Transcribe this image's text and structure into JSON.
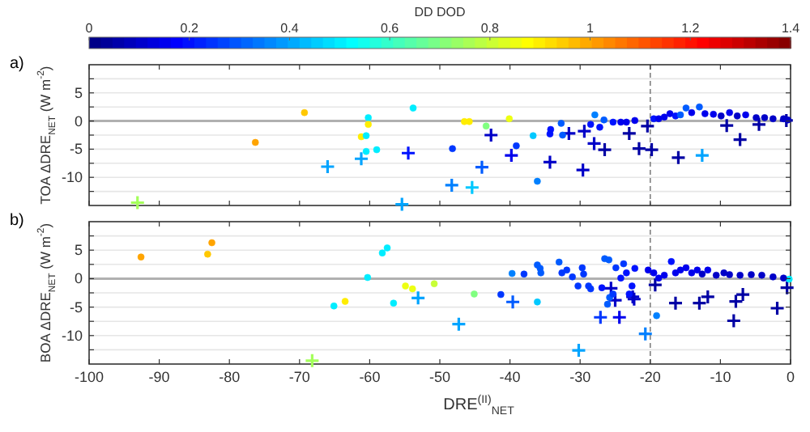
{
  "chart_data": [
    {
      "type": "scatter",
      "title": "a)",
      "ylabel": "TOA ΔDRE$_{NET}$ (W m$^{-2}$)",
      "clabel": "DD DOD",
      "clim": [
        0,
        1.4
      ],
      "cticks": [
        0,
        0.2,
        0.4,
        0.6,
        0.8,
        1,
        1.2,
        1.4
      ],
      "xlim": [
        -100,
        0
      ],
      "xticks": [
        -100,
        -90,
        -80,
        -70,
        -60,
        -50,
        -40,
        -30,
        -20,
        -10,
        0
      ],
      "tick_labels": "y",
      "ylim": [
        -15,
        10
      ],
      "yticks": [
        {
          "value": -12.5,
          "label": null
        },
        -10,
        {
          "value": -7.5,
          "label": null
        },
        -5,
        {
          "value": -2.5,
          "label": null
        },
        0,
        {
          "value": 2.5,
          "label": null
        },
        5,
        {
          "value": 7.5,
          "label": null
        }
      ],
      "grid": "y",
      "ref_lines": [
        {
          "axis": "x",
          "value": -20,
          "label": null,
          "color": "#808080",
          "line_style": "dashed"
        },
        {
          "axis": "y",
          "value": 0,
          "label": null,
          "color": "#b0b0b0",
          "line_style": "solid"
        }
      ],
      "series": [
        {
          "marker": "circle",
          "x": [
            -76.3,
            -69.3,
            -60.2,
            -60.2,
            -61.2,
            -60.5,
            -60.5,
            -59,
            -53.8,
            -46.5,
            -45.8,
            -43.4,
            -40.1,
            -48.2,
            -39.1,
            -36.7,
            -36.1,
            -34.2,
            -34.3,
            -32.7,
            -32.5,
            -28.5,
            -27.9,
            -26.6,
            -27.2,
            -25.3,
            -24.2,
            -23.4,
            -22.2,
            -19.5,
            -18.8,
            -18,
            -17.2,
            -16.4,
            -15.7,
            -14.9,
            -14.1,
            -13,
            -12.2,
            -11,
            -9.9,
            -8.7,
            -7.6,
            -6.4,
            -4.9,
            -3.7,
            -2.5,
            -1,
            -0.4
          ],
          "values": [
            -3.8,
            1.5,
            0.6,
            -0.6,
            -2.8,
            -2.6,
            -5.4,
            -5.1,
            2.3,
            -0.1,
            -0.1,
            -0.9,
            0.4,
            -4.9,
            -4.4,
            -2.6,
            -10.7,
            -1.5,
            -2.3,
            -0.4,
            -2.5,
            -0.6,
            1.1,
            0.2,
            -1.1,
            -0.2,
            -0.2,
            -0.2,
            0.1,
            0.4,
            0.4,
            0.7,
            1.3,
            0.9,
            1.1,
            2.3,
            1.5,
            2.5,
            1.3,
            1.2,
            0.9,
            1.5,
            0.9,
            1.1,
            0.6,
            0.6,
            0.4,
            0.4,
            0.2
          ],
          "cvalues": [
            1.0,
            0.95,
            0.5,
            0.9,
            0.9,
            0.5,
            0.5,
            0.5,
            0.5,
            0.9,
            0.9,
            0.7,
            0.85,
            0.25,
            0.25,
            0.45,
            0.35,
            0.2,
            0.2,
            0.3,
            0.3,
            0.2,
            0.35,
            0.3,
            0.2,
            0.2,
            0.15,
            0.15,
            0.15,
            0.2,
            0.15,
            0.15,
            0.15,
            0.2,
            0.3,
            0.3,
            0.15,
            0.3,
            0.15,
            0.15,
            0.1,
            0.15,
            0.1,
            0.15,
            0.1,
            0.1,
            0.1,
            0.1,
            0.1
          ],
          "colors": [
            "#ffa400",
            "#ffc800",
            "#00edff",
            "#ffed00",
            "#ffed00",
            "#00edff",
            "#00edff",
            "#00edff",
            "#00edff",
            "#ffed00",
            "#ffed00",
            "#80ff80",
            "#edff12",
            "#0037ff",
            "#0037ff",
            "#00c8ff",
            "#0080ff",
            "#0012ff",
            "#0012ff",
            "#005bff",
            "#005bff",
            "#0012ff",
            "#0080ff",
            "#005bff",
            "#0012ff",
            "#0012ff",
            "#0000ed",
            "#0000ed",
            "#0000ed",
            "#0012ff",
            "#0000ed",
            "#0000ed",
            "#0000ed",
            "#0012ff",
            "#005bff",
            "#005bff",
            "#0000ed",
            "#005bff",
            "#0000ed",
            "#0000ed",
            "#0000c8",
            "#0000ed",
            "#0000c8",
            "#0000ed",
            "#0000c8",
            "#0000c8",
            "#0000c8",
            "#0000c8",
            "#0000c8"
          ]
        },
        {
          "marker": "cross",
          "x": [
            -93.1,
            -66,
            -61.2,
            -54.5,
            -55.4,
            -42.7,
            -48.3,
            -45.4,
            -44,
            -39.8,
            -34.3,
            -31.6,
            -29.6,
            -29.4,
            -28,
            -26.5,
            -23,
            -21.6,
            -20.4,
            -19.8,
            -16,
            -12.6,
            -9.1,
            -7.2,
            -4.5,
            -0.6
          ],
          "values": [
            -14.5,
            -8.1,
            -6.7,
            -5.7,
            -14.8,
            -2.5,
            -11.4,
            -11.8,
            -8.2,
            -6.1,
            -7.3,
            -2.2,
            -8.7,
            -1.8,
            -4,
            -5.1,
            -2.2,
            -4.9,
            -0.9,
            -5.1,
            -6.5,
            -6.1,
            -0.8,
            -3.3,
            -0.6,
            0.1
          ],
          "cvalues": [
            0.75,
            0.4,
            0.4,
            0.2,
            0.4,
            0.1,
            0.35,
            0.45,
            0.3,
            0.15,
            0.1,
            0.1,
            0.1,
            0.1,
            0.1,
            0.05,
            0.05,
            0.05,
            0.05,
            0.05,
            0.05,
            0.4,
            0.05,
            0.05,
            0.05,
            0.05
          ],
          "colors": [
            "#a4ff5b",
            "#00a4ff",
            "#00a4ff",
            "#0012ff",
            "#00a4ff",
            "#0000c8",
            "#0080ff",
            "#00c8ff",
            "#005bff",
            "#0000ed",
            "#0000c8",
            "#0000c8",
            "#0000c8",
            "#0000c8",
            "#0000c8",
            "#0000a4",
            "#0000a4",
            "#0000a4",
            "#0000a4",
            "#0000a4",
            "#0000a4",
            "#00a4ff",
            "#0000a4",
            "#0000a4",
            "#0000a4",
            "#0000a4"
          ]
        }
      ]
    },
    {
      "type": "scatter",
      "title": "b)",
      "ylabel": "BOA ΔDRE$_{NET}$ (W m$^{-2}$)",
      "xlabel": "DRE$^{(II)}$$_{NET}$",
      "xlim": [
        -100,
        0
      ],
      "xticks": [
        -100,
        -90,
        -80,
        -70,
        -60,
        -50,
        -40,
        -30,
        -20,
        -10,
        0
      ],
      "ylim": [
        -15,
        10
      ],
      "yticks": [
        {
          "value": -12.5,
          "label": null
        },
        -10,
        {
          "value": -7.5,
          "label": null
        },
        -5,
        {
          "value": -2.5,
          "label": null
        },
        0,
        {
          "value": 2.5,
          "label": null
        },
        5,
        {
          "value": 7.5,
          "label": null
        }
      ],
      "grid": "y",
      "ref_lines": [
        {
          "axis": "x",
          "value": -20,
          "label": null,
          "color": "#808080",
          "line_style": "dashed"
        },
        {
          "axis": "y",
          "value": 0,
          "label": null,
          "color": "#b0b0b0",
          "line_style": "solid"
        }
      ],
      "series": [
        {
          "marker": "circle",
          "x": [
            -92.6,
            -83.1,
            -82.5,
            -65.1,
            -63.5,
            -60.3,
            -58.2,
            -57.5,
            -56.6,
            -54.9,
            -53.9,
            -50.8,
            -45.1,
            -41.3,
            -39.7,
            -38,
            -36.1,
            -36.1,
            -35.7,
            -35.6,
            -33,
            -32.6,
            -31.9,
            -31.1,
            -29.7,
            -29.5,
            -30.3,
            -28.8,
            -28.5,
            -26.1,
            -25.8,
            -25.3,
            -26.9,
            -26.5,
            -25.9,
            -24.9,
            -24.2,
            -23.8,
            -23.4,
            -22.6,
            -22.2,
            -23,
            -19.1,
            -0.2,
            -20.3,
            -19.5,
            -18.8,
            -18,
            -17,
            -16.4,
            -15.7,
            -14.9,
            -14.1,
            -13.3,
            -12.6,
            -11.8,
            -10.6,
            -9.5,
            -8.7,
            -7.2,
            -5.6,
            -4.1,
            -2.5,
            -1
          ],
          "values": [
            3.8,
            4.3,
            6.3,
            -4.8,
            -4,
            0.2,
            4.5,
            5.4,
            -4.3,
            -1.3,
            -1.8,
            -0.9,
            -2.7,
            -2.8,
            0.9,
            0.8,
            -4.1,
            2.4,
            1.8,
            1,
            2.9,
            1,
            1.5,
            0.3,
            1.9,
            0.8,
            -1.3,
            -1.3,
            -1.8,
            -4.5,
            -3.3,
            -2.7,
            -1.6,
            3.5,
            3.3,
            1.9,
            0.1,
            2.6,
            1,
            -1.3,
            1.8,
            -2.7,
            -6.5,
            -0.1,
            1.5,
            1,
            0.1,
            0.6,
            3,
            1,
            1.5,
            1.9,
            1,
            1.5,
            0.8,
            1.5,
            0.6,
            1,
            0.7,
            0.6,
            0.7,
            0.6,
            0.3,
            0.1
          ],
          "colors": [
            "#ffa400",
            "#ffc800",
            "#ffa400",
            "#00edff",
            "#ffed00",
            "#00edff",
            "#00edff",
            "#00edff",
            "#00edff",
            "#edff12",
            "#edff12",
            "#c8ff37",
            "#80ff80",
            "#0037ff",
            "#0080ff",
            "#0037ff",
            "#00c8ff",
            "#005bff",
            "#005bff",
            "#005bff",
            "#005bff",
            "#0037ff",
            "#0037ff",
            "#0037ff",
            "#0037ff",
            "#0037ff",
            "#0037ff",
            "#0037ff",
            "#0037ff",
            "#005bff",
            "#005bff",
            "#0037ff",
            "#0012ff",
            "#005bff",
            "#005bff",
            "#0037ff",
            "#0012ff",
            "#0037ff",
            "#0012ff",
            "#0012ff",
            "#0012ff",
            "#0012ff",
            "#0080ff",
            "#00edff",
            "#0000ed",
            "#0000ed",
            "#0000ed",
            "#0000ed",
            "#0012ff",
            "#0000ed",
            "#0000ed",
            "#0000ed",
            "#0000ed",
            "#0000ed",
            "#0000c8",
            "#0000ed",
            "#0000c8",
            "#0000c8",
            "#0000c8",
            "#0000c8",
            "#0000c8",
            "#0000c8",
            "#0000c8",
            "#0000c8"
          ]
        },
        {
          "marker": "cross",
          "x": [
            -68.2,
            -53.1,
            -47.3,
            -39.6,
            -30.2,
            -27.1,
            -24.4,
            -25.6,
            -25,
            -22.5,
            -22.3,
            -20.7,
            -19.3,
            -16.4,
            -13,
            -11.8,
            -8.1,
            -7.8,
            -6.8,
            -1.9,
            -0.5
          ],
          "values": [
            -14.4,
            -3.4,
            -8,
            -4.1,
            -12.6,
            -6.8,
            -6.8,
            -1.7,
            -3.8,
            -3.2,
            -3.6,
            -9.7,
            -1.1,
            -4.3,
            -4.3,
            -3.2,
            -7.4,
            -4,
            -2.8,
            -5.2,
            -1.6
          ],
          "colors": [
            "#a4ff5b",
            "#00a4ff",
            "#00a4ff",
            "#005bff",
            "#00a4ff",
            "#0037ff",
            "#0000ed",
            "#0000c8",
            "#0000c8",
            "#0000c8",
            "#0000c8",
            "#0080ff",
            "#0000a4",
            "#0000a4",
            "#0000a4",
            "#0000a4",
            "#0000a4",
            "#0000a4",
            "#0000a4",
            "#0000a4",
            "#0000a4"
          ]
        }
      ]
    }
  ]
}
